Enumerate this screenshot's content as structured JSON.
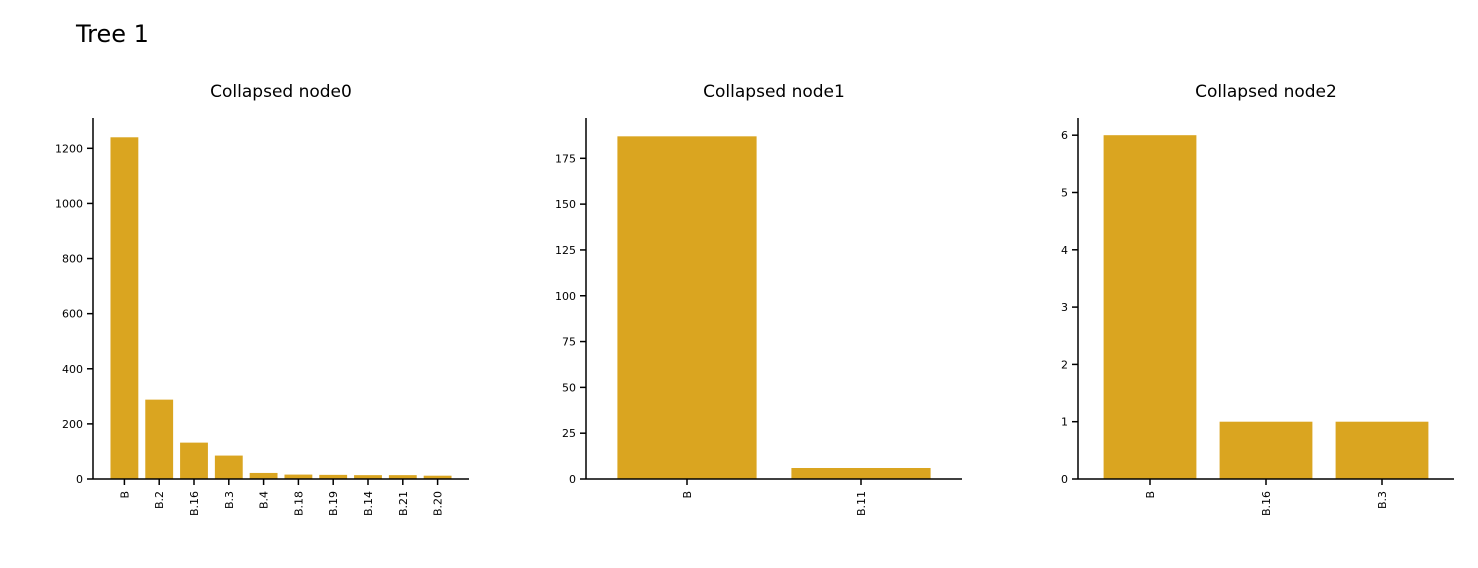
{
  "figure_title": "Tree 1",
  "colors": {
    "bar": "#DAA520",
    "axis": "#000000"
  },
  "chart_data": [
    {
      "type": "bar",
      "title": "Collapsed node0",
      "categories": [
        "B",
        "B.2",
        "B.16",
        "B.3",
        "B.4",
        "B.18",
        "B.19",
        "B.14",
        "B.21",
        "B.20"
      ],
      "values": [
        1240,
        288,
        132,
        85,
        22,
        16,
        15,
        14,
        14,
        12
      ],
      "ylim": [
        0,
        1310
      ],
      "yticks": [
        0,
        200,
        400,
        600,
        800,
        1000,
        1200
      ],
      "xlabel": "",
      "ylabel": ""
    },
    {
      "type": "bar",
      "title": "Collapsed node1",
      "categories": [
        "B",
        "B.11"
      ],
      "values": [
        187,
        6
      ],
      "ylim": [
        0,
        197
      ],
      "yticks": [
        0,
        25,
        50,
        75,
        100,
        125,
        150,
        175
      ],
      "xlabel": "",
      "ylabel": ""
    },
    {
      "type": "bar",
      "title": "Collapsed node2",
      "categories": [
        "B",
        "B.16",
        "B.3"
      ],
      "values": [
        6,
        1,
        1
      ],
      "ylim": [
        0,
        6.3
      ],
      "yticks": [
        0,
        1,
        2,
        3,
        4,
        5,
        6
      ],
      "xlabel": "",
      "ylabel": ""
    }
  ]
}
